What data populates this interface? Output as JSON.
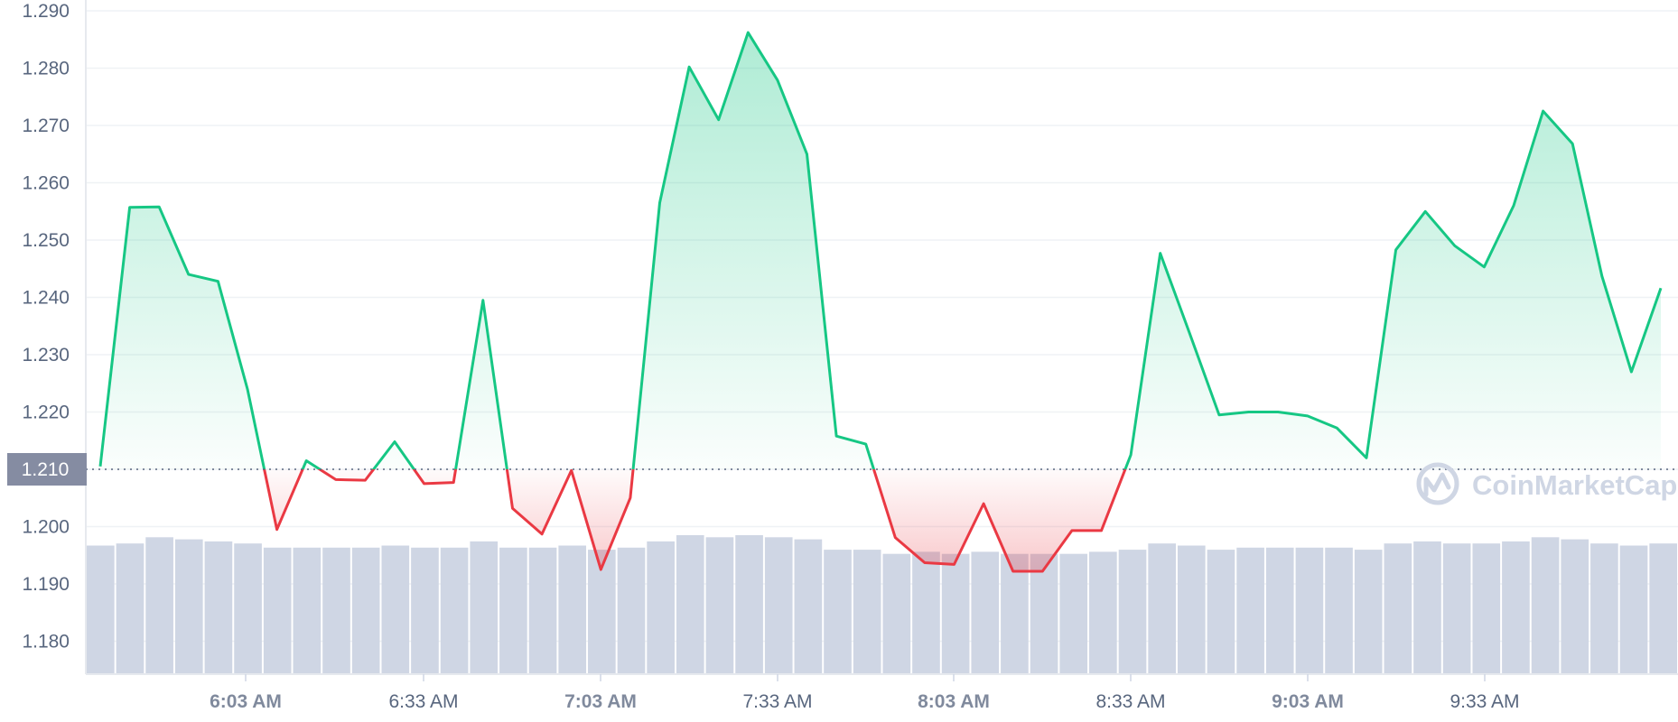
{
  "chart_data": {
    "type": "area",
    "y_ticks": [
      "1.290",
      "1.280",
      "1.270",
      "1.260",
      "1.250",
      "1.240",
      "1.230",
      "1.220",
      "1.210",
      "1.200",
      "1.190",
      "1.180"
    ],
    "x_ticks": [
      {
        "label": "6:03 AM",
        "bold": true
      },
      {
        "label": "6:33 AM",
        "bold": false
      },
      {
        "label": "7:03 AM",
        "bold": true
      },
      {
        "label": "7:33 AM",
        "bold": false
      },
      {
        "label": "8:03 AM",
        "bold": true
      },
      {
        "label": "8:33 AM",
        "bold": false
      },
      {
        "label": "9:03 AM",
        "bold": true
      },
      {
        "label": "9:33 AM",
        "bold": false
      }
    ],
    "ylim": [
      1.175,
      1.292
    ],
    "reference": {
      "value": 1.21,
      "label": "1.210"
    },
    "up_color": "#16c784",
    "down_color": "#ea3943",
    "volume_color": "#cfd6e4",
    "price": [
      1.2105,
      1.2557,
      1.2558,
      1.244,
      1.2428,
      1.224,
      1.1995,
      1.2115,
      1.2082,
      1.2081,
      1.2148,
      1.2075,
      1.2077,
      1.2395,
      1.2032,
      1.1987,
      1.2098,
      1.1925,
      1.205,
      1.2565,
      1.2802,
      1.271,
      1.2862,
      1.2779,
      1.265,
      1.2158,
      1.2144,
      1.1981,
      1.1937,
      1.1934,
      1.204,
      1.1922,
      1.1922,
      1.1993,
      1.1993,
      1.2125,
      1.2477,
      1.2337,
      1.2195,
      1.22,
      1.22,
      1.2193,
      1.2172,
      1.212,
      1.2483,
      1.255,
      1.249,
      1.2453,
      1.256,
      1.2725,
      1.2668,
      1.2437,
      1.227,
      1.2416
    ],
    "volume": [
      0.62,
      0.63,
      0.66,
      0.65,
      0.64,
      0.63,
      0.61,
      0.61,
      0.61,
      0.61,
      0.62,
      0.61,
      0.61,
      0.64,
      0.61,
      0.61,
      0.62,
      0.6,
      0.61,
      0.64,
      0.67,
      0.66,
      0.67,
      0.66,
      0.65,
      0.6,
      0.6,
      0.58,
      0.59,
      0.58,
      0.59,
      0.58,
      0.58,
      0.58,
      0.59,
      0.6,
      0.63,
      0.62,
      0.6,
      0.61,
      0.61,
      0.61,
      0.61,
      0.6,
      0.63,
      0.64,
      0.63,
      0.63,
      0.64,
      0.66,
      0.65,
      0.63,
      0.62,
      0.63
    ]
  },
  "watermark": {
    "text": "CoinMarketCap"
  }
}
